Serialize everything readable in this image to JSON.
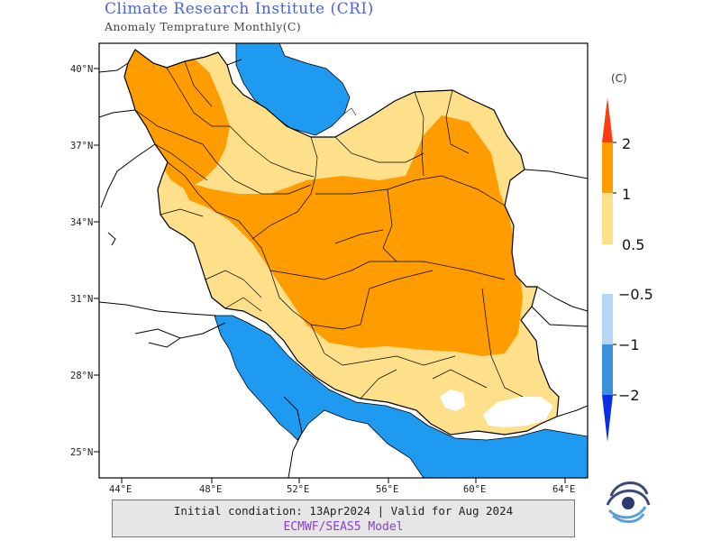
{
  "header": {
    "title": "Climate Research Institute (CRI)",
    "subtitle": "Anomaly Temprature Monthly(C)"
  },
  "map": {
    "lat_ticks": [
      "40°N",
      "37°N",
      "34°N",
      "31°N",
      "28°N",
      "25°N"
    ],
    "lon_ticks": [
      "44°E",
      "48°E",
      "52°E",
      "56°E",
      "60°E",
      "64°E"
    ],
    "extent": {
      "lon": [
        43,
        65
      ],
      "lat": [
        24,
        40.5
      ]
    },
    "colors": {
      "sea": "#1e9bf0",
      "land_outside": "#ffffff",
      "anom_05_1": "#ffe08a",
      "anom_1_2": "#ff9c00",
      "anom_gt2": "#ff3b10",
      "anom_m05_m1": "#b5d6f5",
      "anom_m1_m2": "#3c8fd8",
      "anom_lt_m2": "#0a2fe0",
      "border": "#000000"
    }
  },
  "legend": {
    "unit": "(C)",
    "warm_labels": [
      "2",
      "1",
      "0.5"
    ],
    "cold_labels": [
      "−0.5",
      "−1",
      "−2"
    ]
  },
  "footer": {
    "line1": "Initial condiation: 13Apr2024 | Valid for Aug 2024",
    "line2": "ECMWF/SEAS5 Model"
  }
}
